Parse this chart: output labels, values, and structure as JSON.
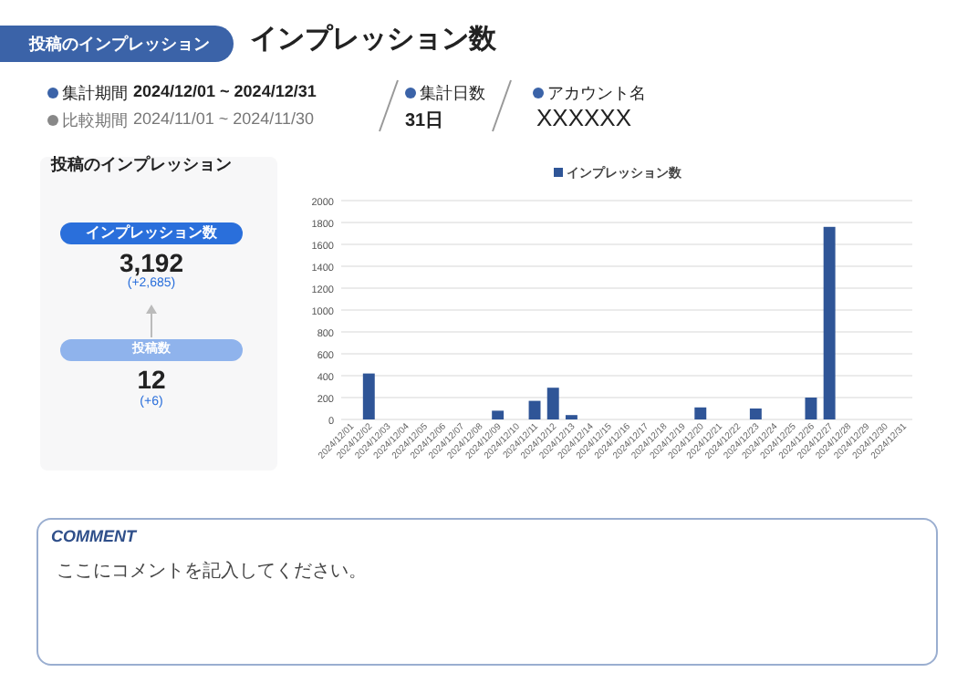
{
  "chart_data": [
    {
      "type": "other",
      "subtitle": "投稿のインプレッション",
      "title": "インプレッション数",
      "annotations": [
        "集計期間",
        "2024/12/01 ~ 2024/12/31",
        "比較期間",
        "2024/11/01 ~ 2024/11/30",
        "集計日数",
        "31日",
        "アカウント名",
        "XXXXXX"
      ]
    },
    {
      "type": "other",
      "title": "投稿のインプレッション",
      "annotations": [
        "インプレッション数",
        "3,192",
        "(+2,685)",
        "投稿数",
        "12",
        "(+6)"
      ]
    },
    {
      "type": "bar",
      "categories": [
        "2024/12/01",
        "2024/12/02",
        "2024/12/03",
        "2024/12/04",
        "2024/12/05",
        "2024/12/06",
        "2024/12/07",
        "2024/12/08",
        "2024/12/09",
        "2024/12/10",
        "2024/12/11",
        "2024/12/12",
        "2024/12/13",
        "2024/12/14",
        "2024/12/15",
        "2024/12/16",
        "2024/12/17",
        "2024/12/18",
        "2024/12/19",
        "2024/12/20",
        "2024/12/21",
        "2024/12/22",
        "2024/12/23",
        "2024/12/24",
        "2024/12/25",
        "2024/12/26",
        "2024/12/27",
        "2024/12/28",
        "2024/12/29",
        "2024/12/30",
        "2024/12/31"
      ],
      "series": [
        {
          "name": "インプレッション数",
          "color": "#2f5597",
          "values": [
            0,
            420,
            0,
            0,
            0,
            0,
            0,
            0,
            80,
            0,
            170,
            290,
            40,
            0,
            0,
            0,
            0,
            0,
            0,
            110,
            0,
            0,
            100,
            0,
            0,
            200,
            1760,
            0,
            0,
            0,
            0
          ]
        }
      ],
      "ylim": [
        0,
        2000
      ],
      "yticks": [
        0,
        200,
        400,
        600,
        800,
        1000,
        1200,
        1400,
        1600,
        1800,
        2000
      ],
      "grid": "y",
      "legend": "top"
    },
    {
      "type": "other",
      "title": "COMMENT",
      "annotations": [
        "ここにコメントを記入してください。"
      ]
    }
  ]
}
